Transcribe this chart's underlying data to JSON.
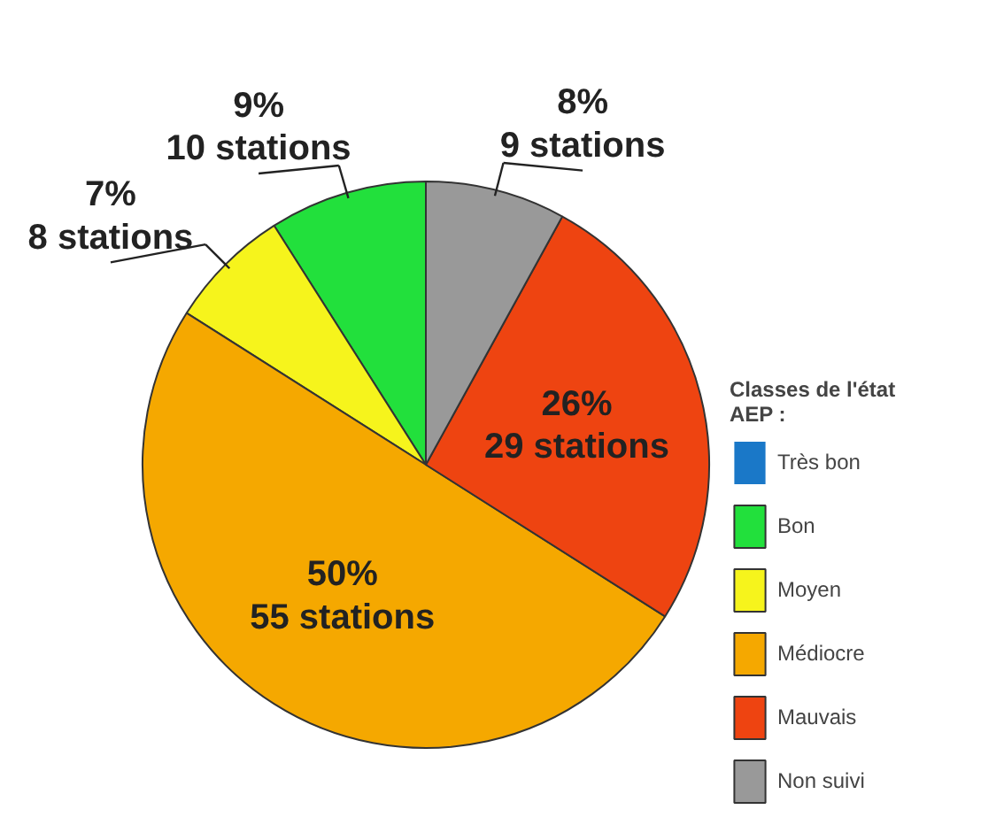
{
  "chart_data": {
    "type": "pie",
    "legend_title": "Classes de l'état AEP :",
    "legend": "right",
    "categories": [
      "Très bon",
      "Bon",
      "Moyen",
      "Médiocre",
      "Mauvais",
      "Non suivi"
    ],
    "values": [
      0,
      9,
      7,
      50,
      26,
      8
    ],
    "colors": [
      "#1a78c8",
      "#22e03c",
      "#f6f41c",
      "#f5a800",
      "#ee4411",
      "#999999"
    ],
    "value_labels": [
      null,
      "9%\n10 stations",
      "7%\n8 stations",
      "50%\n55 stations",
      "26%\n29 stations",
      "8%\n9 stations"
    ]
  }
}
